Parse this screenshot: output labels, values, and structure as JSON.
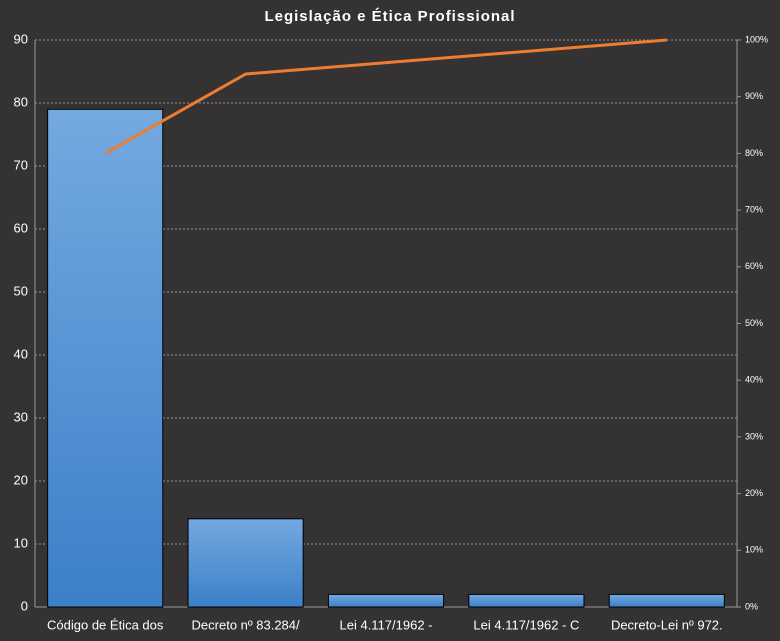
{
  "chart_data": {
    "type": "pareto",
    "title": "Legislação e Ética Profissional",
    "categories": [
      "Código de Ética dos",
      "Decreto nº 83.284/",
      "Lei 4.117/1962 -",
      "Lei 4.117/1962 - C",
      "Decreto-Lei nº 972."
    ],
    "series": [
      {
        "type": "bar",
        "color": "#4a8fd6",
        "values": [
          79,
          14,
          2,
          2,
          2
        ]
      },
      {
        "type": "line",
        "color": "#ed7d31",
        "axis": "y2",
        "values": [
          80,
          94,
          96,
          98,
          100
        ]
      }
    ],
    "ylim": [
      0,
      90
    ],
    "yticks": [
      0,
      10,
      20,
      30,
      40,
      50,
      60,
      70,
      80,
      90
    ],
    "y2lim": [
      0,
      100
    ],
    "y2ticks": [
      {
        "value": 0,
        "label": "0%"
      },
      {
        "value": 10,
        "label": "10%"
      },
      {
        "value": 20,
        "label": "20%"
      },
      {
        "value": 30,
        "label": "30%"
      },
      {
        "value": 40,
        "label": "40%"
      },
      {
        "value": 50,
        "label": "50%"
      },
      {
        "value": 60,
        "label": "60%"
      },
      {
        "value": 70,
        "label": "70%"
      },
      {
        "value": 80,
        "label": "80%"
      },
      {
        "value": 90,
        "label": "90%"
      },
      {
        "value": 100,
        "label": "100%"
      }
    ],
    "grid": true
  }
}
